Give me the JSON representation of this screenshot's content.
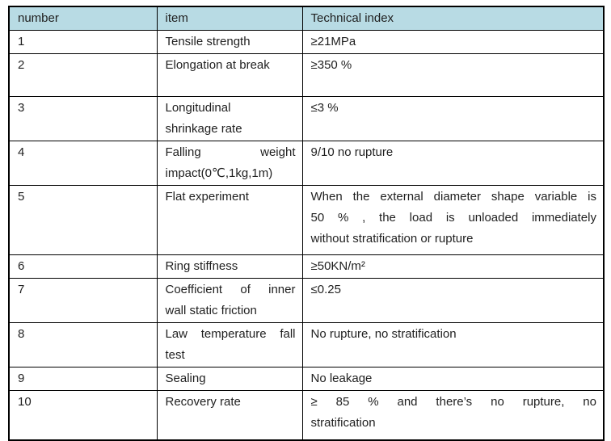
{
  "colors": {
    "header_bg": "#b8dbe4",
    "border_color": "#000000",
    "text_color": "#1f1f1f"
  },
  "table": {
    "columns": [
      {
        "key": "number",
        "label": "number"
      },
      {
        "key": "item",
        "label": "item"
      },
      {
        "key": "index",
        "label": "Technical index"
      }
    ],
    "rows": [
      {
        "number": "1",
        "item": "Tensile strength",
        "index": "≥21MPa"
      },
      {
        "number": "2",
        "item": "Elongation at break",
        "index": "≥350 %"
      },
      {
        "number": "3",
        "item": [
          "Longitudinal",
          "shrinkage rate"
        ],
        "index": "≤3 %"
      },
      {
        "number": "4",
        "item": [
          "Falling weight",
          "impact(0℃,1kg,1m)"
        ],
        "index": "9/10 no rupture"
      },
      {
        "number": "5",
        "item": "Flat experiment",
        "index": [
          "When the external diameter shape variable is",
          "50 % , the load is unloaded immediately",
          "without stratification or rupture"
        ]
      },
      {
        "number": "6",
        "item": "Ring stiffness",
        "index": "≥50KN/m²"
      },
      {
        "number": "7",
        "item": [
          "Coefficient of inner",
          "wall static friction"
        ],
        "index": "≤0.25"
      },
      {
        "number": "8",
        "item": [
          "Law temperature fall",
          "test"
        ],
        "index": "No rupture, no stratification"
      },
      {
        "number": "9",
        "item": "Sealing",
        "index": "No leakage"
      },
      {
        "number": "10",
        "item": "Recovery rate",
        "index": [
          "≥ 85 %  and there’s no rupture, no",
          "stratification"
        ]
      }
    ]
  }
}
